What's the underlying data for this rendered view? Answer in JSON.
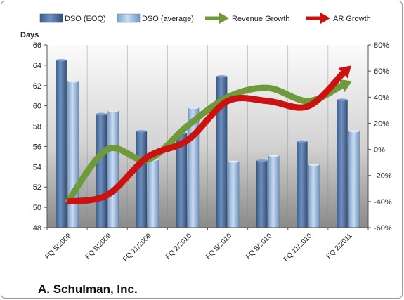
{
  "company_label": "A. Schulman, Inc.",
  "chart_data": {
    "type": "bar",
    "categories": [
      "FQ 5/2009",
      "FQ 8/2009",
      "FQ 11/2009",
      "FQ 2/2010",
      "FQ 5/2010",
      "FQ 8/2010",
      "FQ 11/2010",
      "FQ 2/2011"
    ],
    "left_axis": {
      "label": "Days",
      "range": [
        48,
        66
      ],
      "ticks": [
        "48",
        "50",
        "52",
        "54",
        "56",
        "58",
        "60",
        "62",
        "64",
        "66"
      ]
    },
    "right_axis": {
      "range": [
        -0.6,
        0.8
      ],
      "ticks": [
        "-60%",
        "-40%",
        "-20%",
        "0%",
        "20%",
        "40%",
        "60%",
        "80%"
      ]
    },
    "series": [
      {
        "name": "DSO (EOQ)",
        "type": "bar",
        "axis": "left",
        "color": "#4d6d9a",
        "values": [
          64.5,
          59.2,
          57.5,
          57.3,
          62.9,
          54.6,
          56.5,
          60.6
        ]
      },
      {
        "name": "DSO (average)",
        "type": "bar",
        "axis": "left",
        "color": "#8fb2da",
        "values": [
          62.4,
          59.5,
          54.7,
          59.8,
          54.5,
          55.1,
          54.2,
          57.5
        ]
      },
      {
        "name": "Revenue Growth",
        "type": "line",
        "axis": "right",
        "color": "#6f9a3a",
        "values": [
          -0.41,
          0.0,
          -0.08,
          0.18,
          0.4,
          0.47,
          0.37,
          0.51
        ]
      },
      {
        "name": "AR Growth",
        "type": "line",
        "axis": "right",
        "color": "#cc1111",
        "values": [
          -0.4,
          -0.35,
          -0.06,
          0.07,
          0.37,
          0.37,
          0.33,
          0.62
        ]
      }
    ],
    "grid": false,
    "legend_position": "top"
  }
}
